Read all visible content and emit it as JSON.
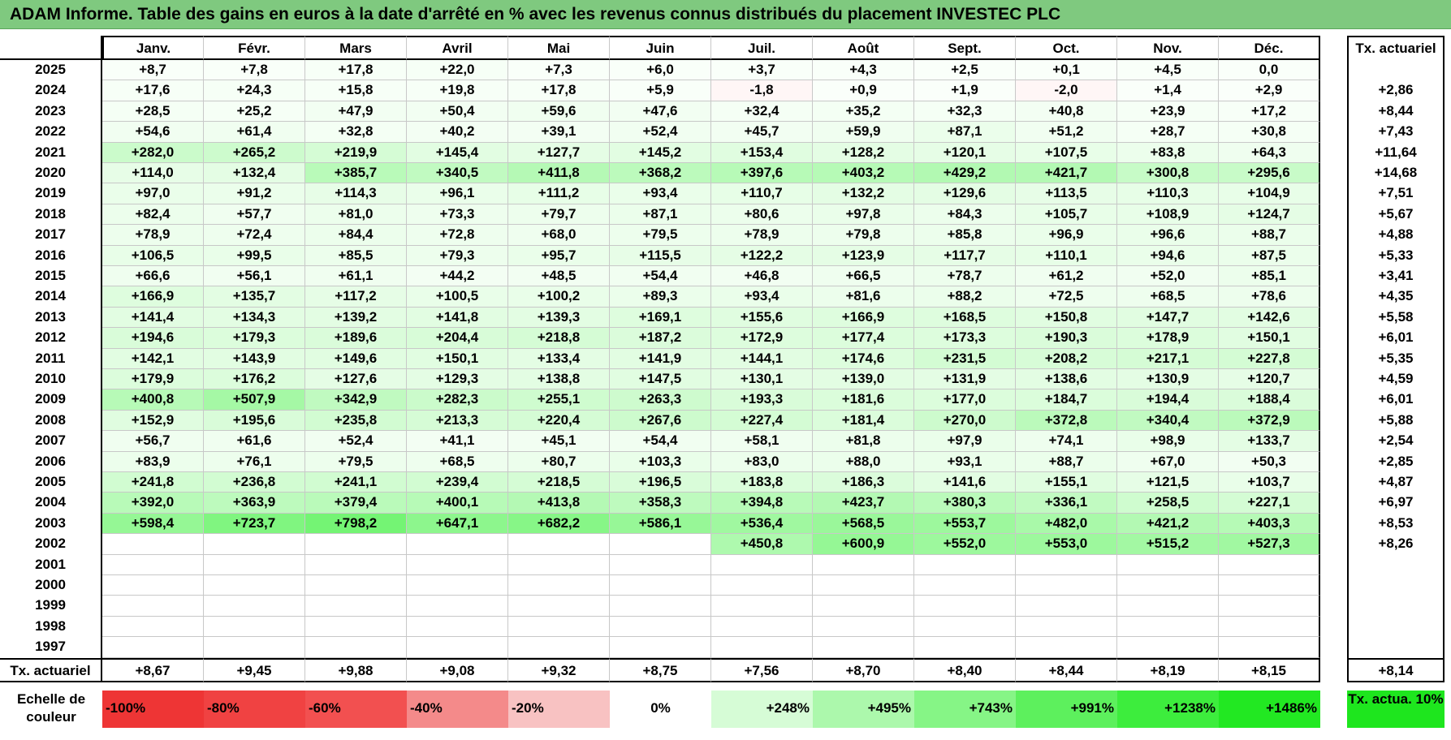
{
  "title": "ADAM Informe. Table des gains en euros à la date d'arrêté en % avec les revenus connus distribués du placement INVESTEC PLC",
  "months": [
    "Janv.",
    "Févr.",
    "Mars",
    "Avril",
    "Mai",
    "Juin",
    "Juil.",
    "Août",
    "Sept.",
    "Oct.",
    "Nov.",
    "Déc."
  ],
  "tx_header": "Tx. actuariel",
  "rows": [
    {
      "year": "2025",
      "values": [
        "+8,7",
        "+7,8",
        "+17,8",
        "+22,0",
        "+7,3",
        "+6,0",
        "+3,7",
        "+4,3",
        "+2,5",
        "+0,1",
        "+4,5",
        "0,0"
      ],
      "tx": ""
    },
    {
      "year": "2024",
      "values": [
        "+17,6",
        "+24,3",
        "+15,8",
        "+19,8",
        "+17,8",
        "+5,9",
        "-1,8",
        "+0,9",
        "+1,9",
        "-2,0",
        "+1,4",
        "+2,9"
      ],
      "tx": "+2,86"
    },
    {
      "year": "2023",
      "values": [
        "+28,5",
        "+25,2",
        "+47,9",
        "+50,4",
        "+59,6",
        "+47,6",
        "+32,4",
        "+35,2",
        "+32,3",
        "+40,8",
        "+23,9",
        "+17,2"
      ],
      "tx": "+8,44"
    },
    {
      "year": "2022",
      "values": [
        "+54,6",
        "+61,4",
        "+32,8",
        "+40,2",
        "+39,1",
        "+52,4",
        "+45,7",
        "+59,9",
        "+87,1",
        "+51,2",
        "+28,7",
        "+30,8"
      ],
      "tx": "+7,43"
    },
    {
      "year": "2021",
      "values": [
        "+282,0",
        "+265,2",
        "+219,9",
        "+145,4",
        "+127,7",
        "+145,2",
        "+153,4",
        "+128,2",
        "+120,1",
        "+107,5",
        "+83,8",
        "+64,3"
      ],
      "tx": "+11,64"
    },
    {
      "year": "2020",
      "values": [
        "+114,0",
        "+132,4",
        "+385,7",
        "+340,5",
        "+411,8",
        "+368,2",
        "+397,6",
        "+403,2",
        "+429,2",
        "+421,7",
        "+300,8",
        "+295,6"
      ],
      "tx": "+14,68"
    },
    {
      "year": "2019",
      "values": [
        "+97,0",
        "+91,2",
        "+114,3",
        "+96,1",
        "+111,2",
        "+93,4",
        "+110,7",
        "+132,2",
        "+129,6",
        "+113,5",
        "+110,3",
        "+104,9"
      ],
      "tx": "+7,51"
    },
    {
      "year": "2018",
      "values": [
        "+82,4",
        "+57,7",
        "+81,0",
        "+73,3",
        "+79,7",
        "+87,1",
        "+80,6",
        "+97,8",
        "+84,3",
        "+105,7",
        "+108,9",
        "+124,7"
      ],
      "tx": "+5,67"
    },
    {
      "year": "2017",
      "values": [
        "+78,9",
        "+72,4",
        "+84,4",
        "+72,8",
        "+68,0",
        "+79,5",
        "+78,9",
        "+79,8",
        "+85,8",
        "+96,9",
        "+96,6",
        "+88,7"
      ],
      "tx": "+4,88"
    },
    {
      "year": "2016",
      "values": [
        "+106,5",
        "+99,5",
        "+85,5",
        "+79,3",
        "+95,7",
        "+115,5",
        "+122,2",
        "+123,9",
        "+117,7",
        "+110,1",
        "+94,6",
        "+87,5"
      ],
      "tx": "+5,33"
    },
    {
      "year": "2015",
      "values": [
        "+66,6",
        "+56,1",
        "+61,1",
        "+44,2",
        "+48,5",
        "+54,4",
        "+46,8",
        "+66,5",
        "+78,7",
        "+61,2",
        "+52,0",
        "+85,1"
      ],
      "tx": "+3,41"
    },
    {
      "year": "2014",
      "values": [
        "+166,9",
        "+135,7",
        "+117,2",
        "+100,5",
        "+100,2",
        "+89,3",
        "+93,4",
        "+81,6",
        "+88,2",
        "+72,5",
        "+68,5",
        "+78,6"
      ],
      "tx": "+4,35"
    },
    {
      "year": "2013",
      "values": [
        "+141,4",
        "+134,3",
        "+139,2",
        "+141,8",
        "+139,3",
        "+169,1",
        "+155,6",
        "+166,9",
        "+168,5",
        "+150,8",
        "+147,7",
        "+142,6"
      ],
      "tx": "+5,58"
    },
    {
      "year": "2012",
      "values": [
        "+194,6",
        "+179,3",
        "+189,6",
        "+204,4",
        "+218,8",
        "+187,2",
        "+172,9",
        "+177,4",
        "+173,3",
        "+190,3",
        "+178,9",
        "+150,1"
      ],
      "tx": "+6,01"
    },
    {
      "year": "2011",
      "values": [
        "+142,1",
        "+143,9",
        "+149,6",
        "+150,1",
        "+133,4",
        "+141,9",
        "+144,1",
        "+174,6",
        "+231,5",
        "+208,2",
        "+217,1",
        "+227,8"
      ],
      "tx": "+5,35"
    },
    {
      "year": "2010",
      "values": [
        "+179,9",
        "+176,2",
        "+127,6",
        "+129,3",
        "+138,8",
        "+147,5",
        "+130,1",
        "+139,0",
        "+131,9",
        "+138,6",
        "+130,9",
        "+120,7"
      ],
      "tx": "+4,59"
    },
    {
      "year": "2009",
      "values": [
        "+400,8",
        "+507,9",
        "+342,9",
        "+282,3",
        "+255,1",
        "+263,3",
        "+193,3",
        "+181,6",
        "+177,0",
        "+184,7",
        "+194,4",
        "+188,4"
      ],
      "tx": "+6,01"
    },
    {
      "year": "2008",
      "values": [
        "+152,9",
        "+195,6",
        "+235,8",
        "+213,3",
        "+220,4",
        "+267,6",
        "+227,4",
        "+181,4",
        "+270,0",
        "+372,8",
        "+340,4",
        "+372,9"
      ],
      "tx": "+5,88"
    },
    {
      "year": "2007",
      "values": [
        "+56,7",
        "+61,6",
        "+52,4",
        "+41,1",
        "+45,1",
        "+54,4",
        "+58,1",
        "+81,8",
        "+97,9",
        "+74,1",
        "+98,9",
        "+133,7"
      ],
      "tx": "+2,54"
    },
    {
      "year": "2006",
      "values": [
        "+83,9",
        "+76,1",
        "+79,5",
        "+68,5",
        "+80,7",
        "+103,3",
        "+83,0",
        "+88,0",
        "+93,1",
        "+88,7",
        "+67,0",
        "+50,3"
      ],
      "tx": "+2,85"
    },
    {
      "year": "2005",
      "values": [
        "+241,8",
        "+236,8",
        "+241,1",
        "+239,4",
        "+218,5",
        "+196,5",
        "+183,8",
        "+186,3",
        "+141,6",
        "+155,1",
        "+121,5",
        "+103,7"
      ],
      "tx": "+4,87"
    },
    {
      "year": "2004",
      "values": [
        "+392,0",
        "+363,9",
        "+379,4",
        "+400,1",
        "+413,8",
        "+358,3",
        "+394,8",
        "+423,7",
        "+380,3",
        "+336,1",
        "+258,5",
        "+227,1"
      ],
      "tx": "+6,97"
    },
    {
      "year": "2003",
      "values": [
        "+598,4",
        "+723,7",
        "+798,2",
        "+647,1",
        "+682,2",
        "+586,1",
        "+536,4",
        "+568,5",
        "+553,7",
        "+482,0",
        "+421,2",
        "+403,3"
      ],
      "tx": "+8,53"
    },
    {
      "year": "2002",
      "values": [
        "",
        "",
        "",
        "",
        "",
        "",
        "+450,8",
        "+600,9",
        "+552,0",
        "+553,0",
        "+515,2",
        "+527,3"
      ],
      "tx": "+8,26"
    },
    {
      "year": "2001",
      "values": [
        "",
        "",
        "",
        "",
        "",
        "",
        "",
        "",
        "",
        "",
        "",
        ""
      ],
      "tx": ""
    },
    {
      "year": "2000",
      "values": [
        "",
        "",
        "",
        "",
        "",
        "",
        "",
        "",
        "",
        "",
        "",
        ""
      ],
      "tx": ""
    },
    {
      "year": "1999",
      "values": [
        "",
        "",
        "",
        "",
        "",
        "",
        "",
        "",
        "",
        "",
        "",
        ""
      ],
      "tx": ""
    },
    {
      "year": "1998",
      "values": [
        "",
        "",
        "",
        "",
        "",
        "",
        "",
        "",
        "",
        "",
        "",
        ""
      ],
      "tx": ""
    },
    {
      "year": "1997",
      "values": [
        "",
        "",
        "",
        "",
        "",
        "",
        "",
        "",
        "",
        "",
        "",
        ""
      ],
      "tx": ""
    }
  ],
  "footer": {
    "label": "Tx. actuariel",
    "values": [
      "+8,67",
      "+9,45",
      "+9,88",
      "+9,08",
      "+9,32",
      "+8,75",
      "+7,56",
      "+8,70",
      "+8,40",
      "+8,44",
      "+8,19",
      "+8,15"
    ],
    "tx": "+8,14"
  },
  "legend": {
    "label": "Echelle de couleur",
    "items": [
      {
        "text": "-100%",
        "color": "#ee3535"
      },
      {
        "text": "-80%",
        "color": "#f04242"
      },
      {
        "text": "-60%",
        "color": "#f25050"
      },
      {
        "text": "-40%",
        "color": "#f48a8a"
      },
      {
        "text": "-20%",
        "color": "#f8c2c2"
      },
      {
        "text": "0%",
        "color": "#ffffff"
      },
      {
        "text": "+248%",
        "color": "#d6fcd6"
      },
      {
        "text": "+495%",
        "color": "#acf8ac"
      },
      {
        "text": "+743%",
        "color": "#86f586"
      },
      {
        "text": "+991%",
        "color": "#5df05d"
      },
      {
        "text": "+1238%",
        "color": "#3ded3d"
      },
      {
        "text": "+1486%",
        "color": "#22e822"
      }
    ],
    "tx_label": "Tx. actua. 10%",
    "tx_color": "#1ee61e"
  }
}
